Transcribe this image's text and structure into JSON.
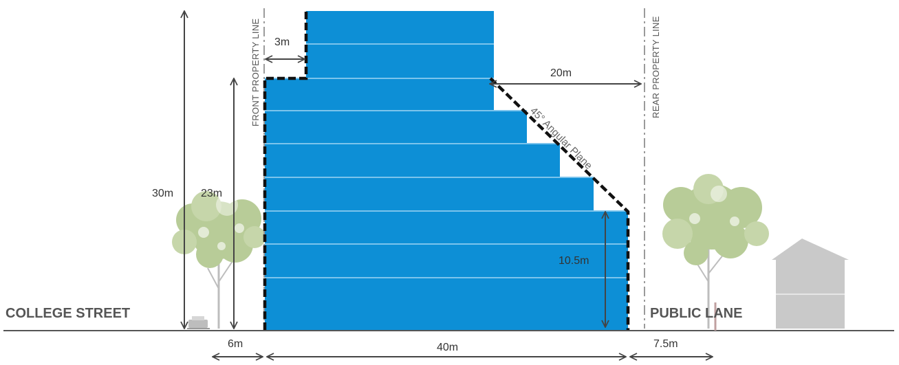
{
  "labels": {
    "front_property_line": "FRONT PROPERTY LINE",
    "rear_property_line": "REAR PROPERTY LINE",
    "college_street": "COLLEGE STREET",
    "public_lane": "PUBLIC LANE",
    "angular_plane": "45° Angular Plane"
  },
  "dimensions": {
    "height_total": "30m",
    "height_streetwall": "23m",
    "stepback_front": "3m",
    "stepback_rear": "20m",
    "height_rear": "10.5m",
    "sidewalk": "6m",
    "building_depth": "40m",
    "lane": "7.5m"
  },
  "colors": {
    "building": "#0d8fd6",
    "floor_line": "#7cc4ec",
    "envelope": "#111111",
    "property_line": "#9a9a9a",
    "tree": "#b8cc98",
    "house": "#c9c9c9",
    "arrow": "#444444"
  }
}
